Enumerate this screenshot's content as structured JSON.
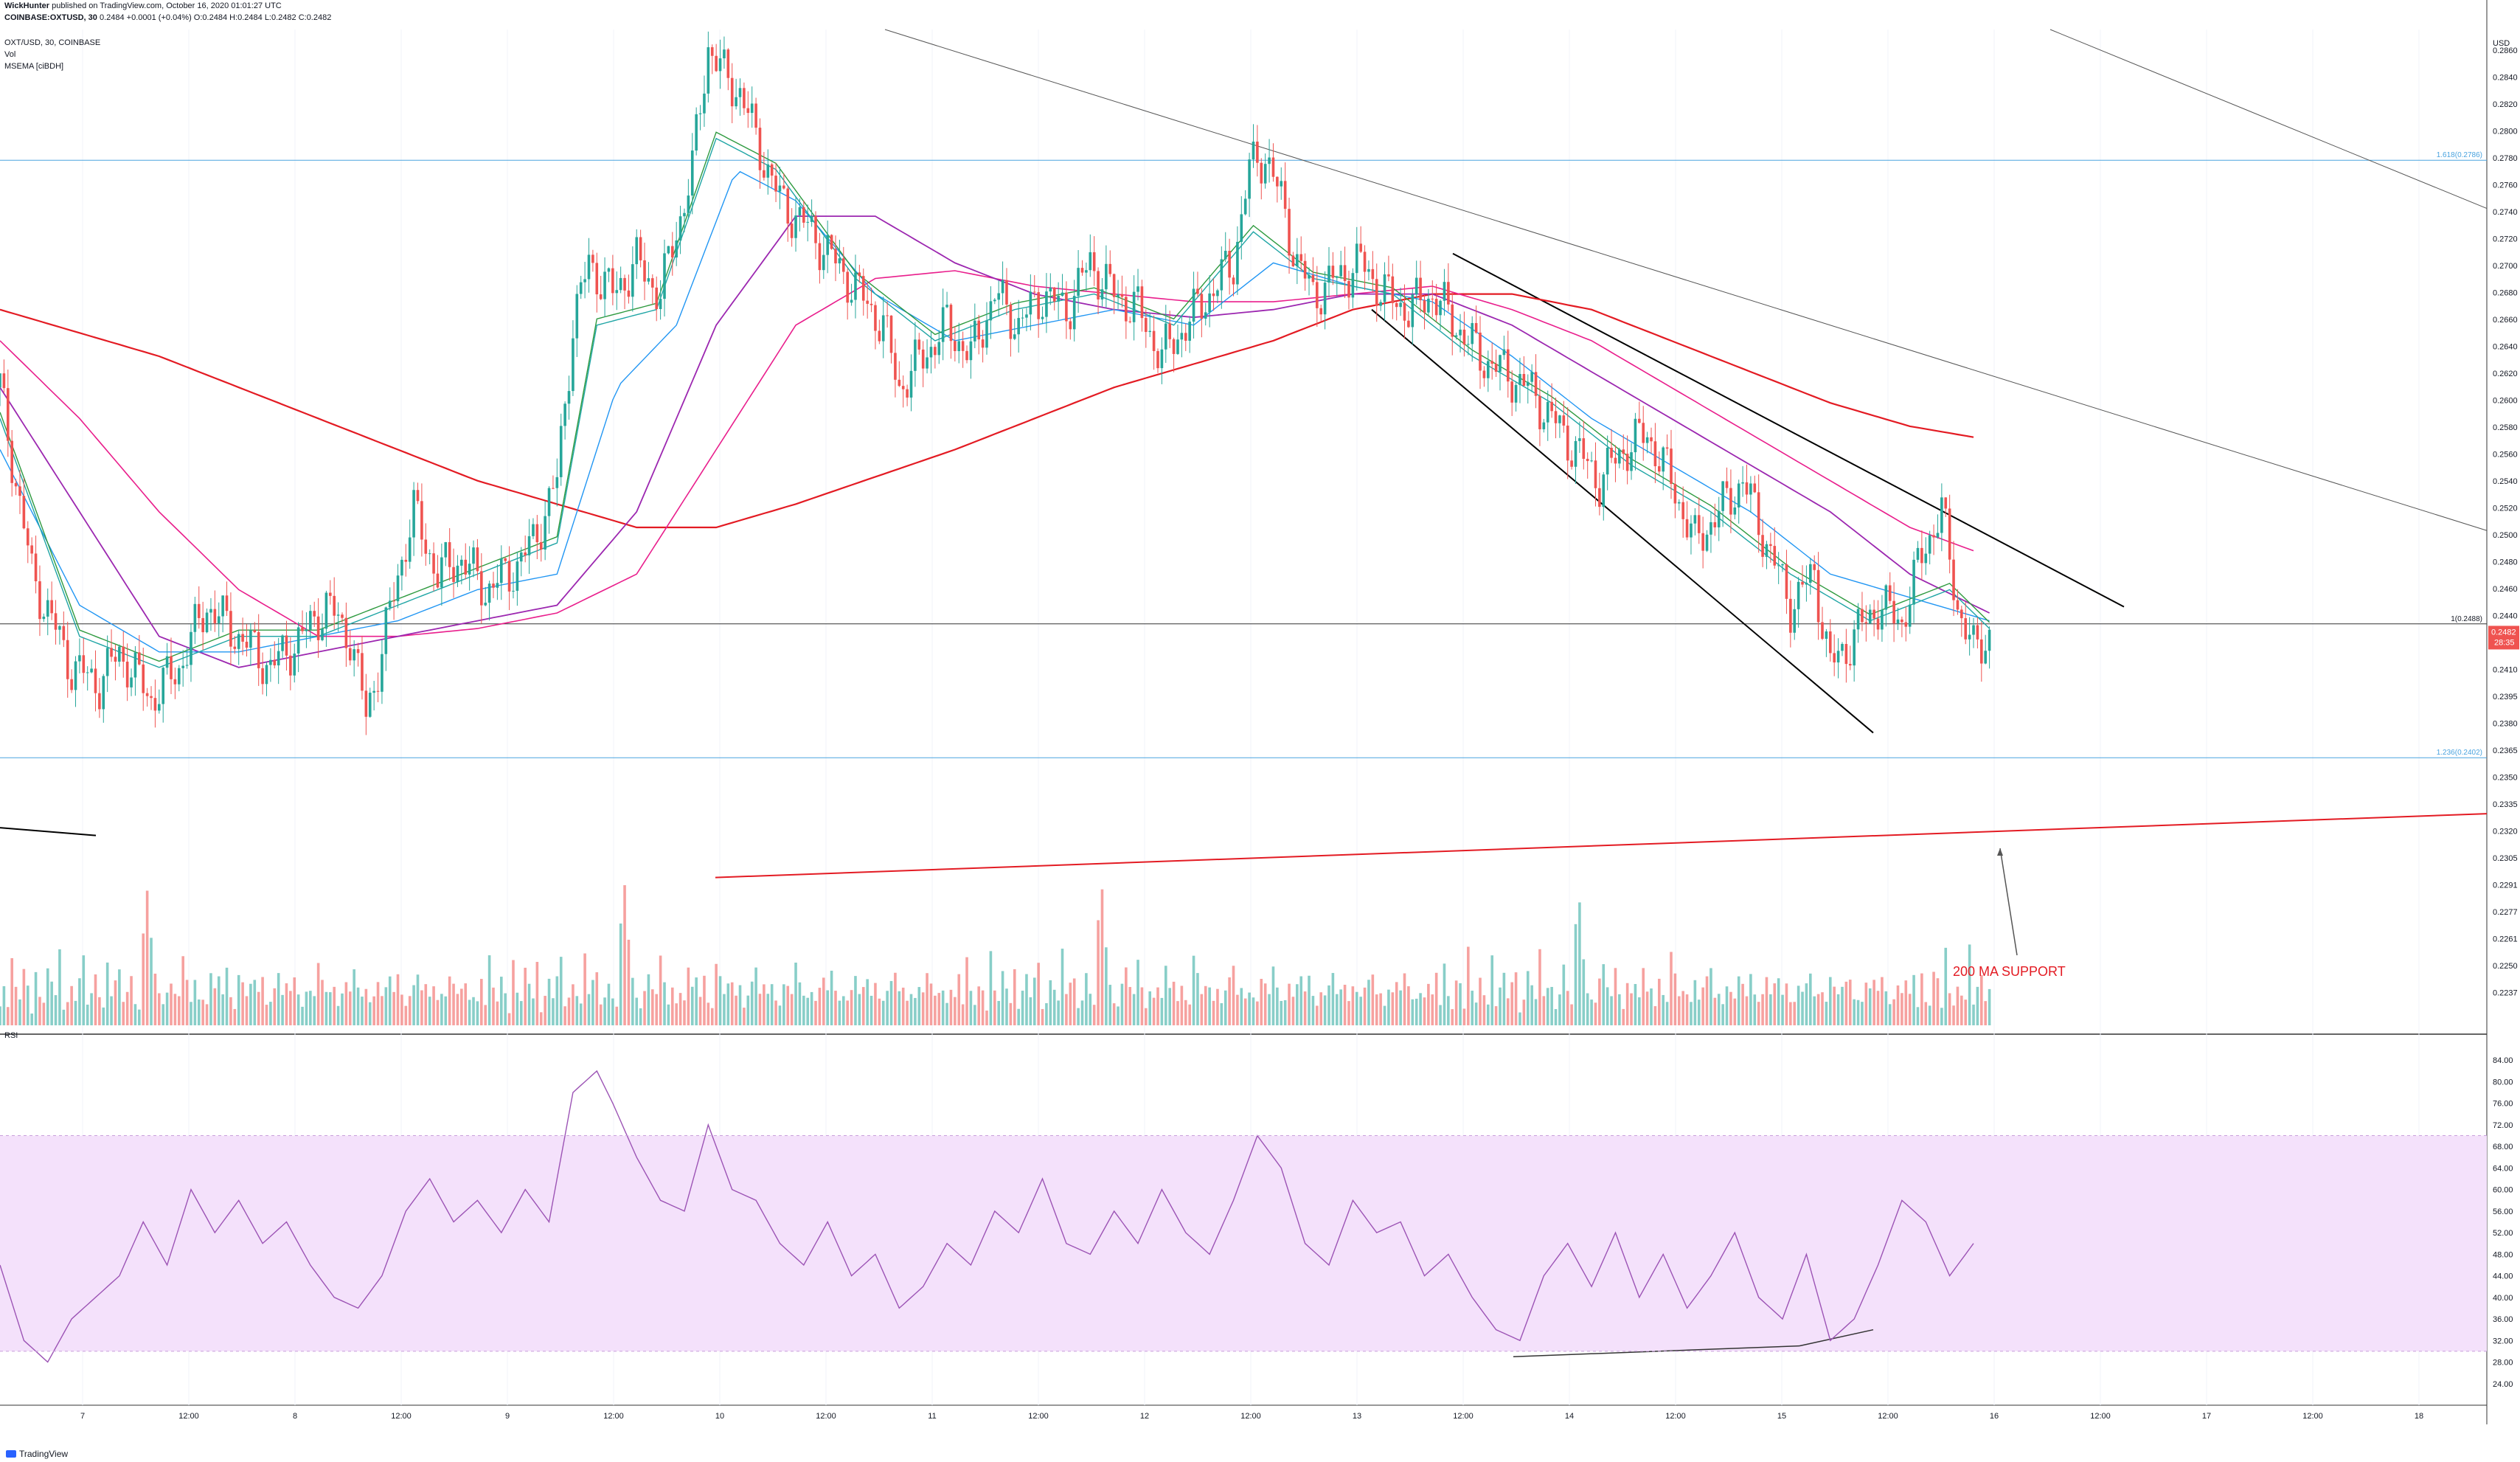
{
  "header": {
    "author": "WickHunter",
    "published": "published on TradingView.com, October 16, 2020 01:01:27 UTC",
    "symbol": "COINBASE:OXTUSD, 30",
    "ohlc": "0.2484 +0.0001 (+0.04%) O:0.2484 H:0.2484 L:0.2482 C:0.2482",
    "pane_title": "OXT/USD, 30, COINBASE",
    "vol_label": "Vol",
    "msema_label": "MSEMA [ciBDH]"
  },
  "brand": {
    "name": "TradingView"
  },
  "colors": {
    "up": "#26a69a",
    "down": "#ef5350",
    "ema_green": "#2e9a3f",
    "ema_teal": "#1fa5a5",
    "ema_blue": "#2196f3",
    "ema_purple": "#9c27b0",
    "ema_magenta": "#e91e8c",
    "ma200": "#e31b23",
    "rsi": "#9c54b5",
    "rsi_band": "#f4e1fb",
    "fib": "#4aa3df"
  },
  "chart_data": [
    {
      "type": "candlestick",
      "title": "OXT/USD, 30, COINBASE",
      "currency": "USD",
      "x_ticks": [
        "7",
        "12:00",
        "8",
        "12:00",
        "9",
        "12:00",
        "10",
        "12:00",
        "11",
        "12:00",
        "12",
        "12:00",
        "13",
        "12:00",
        "14",
        "12:00",
        "15",
        "12:00",
        "16",
        "12:00",
        "17",
        "12:00",
        "18"
      ],
      "y_ticks": [
        "0.2860",
        "0.2840",
        "0.2820",
        "0.2800",
        "0.2780",
        "0.2760",
        "0.2740",
        "0.2720",
        "0.2700",
        "0.2680",
        "0.2660",
        "0.2640",
        "0.2620",
        "0.2600",
        "0.2580",
        "0.2560",
        "0.2540",
        "0.2520",
        "0.2500",
        "0.2480",
        "0.2460",
        "0.2440",
        "0.2425",
        "0.2410",
        "0.2395",
        "0.2380",
        "0.2365",
        "0.2350",
        "0.2335",
        "0.2320",
        "0.2305",
        "0.2291",
        "0.2277",
        "0.2261",
        "0.2250",
        "0.2237"
      ],
      "last_price": "0.2482",
      "countdown": "28:35",
      "fib_levels": [
        {
          "label": "1.618(0.2786)",
          "value": 0.2786
        },
        {
          "label": "1(0.2488)",
          "value": 0.2488
        },
        {
          "label": "1.236(0.2402)",
          "value": 0.2402
        }
      ],
      "annotation": "200 MA SUPPORT",
      "price_path": [
        [
          0,
          0.264
        ],
        [
          8,
          0.252
        ],
        [
          18,
          0.246
        ],
        [
          25,
          0.245
        ],
        [
          30,
          0.247
        ],
        [
          38,
          0.244
        ],
        [
          45,
          0.246
        ],
        [
          52,
          0.25
        ],
        [
          60,
          0.248
        ],
        [
          68,
          0.246
        ],
        [
          76,
          0.248
        ],
        [
          82,
          0.25
        ],
        [
          88,
          0.248
        ],
        [
          92,
          0.243
        ],
        [
          96,
          0.247
        ],
        [
          100,
          0.252
        ],
        [
          104,
          0.256
        ],
        [
          110,
          0.252
        ],
        [
          116,
          0.253
        ],
        [
          122,
          0.251
        ],
        [
          128,
          0.252
        ],
        [
          134,
          0.254
        ],
        [
          140,
          0.258
        ],
        [
          144,
          0.268
        ],
        [
          148,
          0.272
        ],
        [
          154,
          0.27
        ],
        [
          160,
          0.272
        ],
        [
          166,
          0.27
        ],
        [
          170,
          0.274
        ],
        [
          174,
          0.278
        ],
        [
          178,
          0.286
        ],
        [
          182,
          0.284
        ],
        [
          186,
          0.283
        ],
        [
          190,
          0.28
        ],
        [
          196,
          0.276
        ],
        [
          204,
          0.274
        ],
        [
          210,
          0.272
        ],
        [
          216,
          0.27
        ],
        [
          222,
          0.268
        ],
        [
          226,
          0.264
        ],
        [
          232,
          0.266
        ],
        [
          238,
          0.268
        ],
        [
          244,
          0.266
        ],
        [
          250,
          0.27
        ],
        [
          256,
          0.268
        ],
        [
          262,
          0.27
        ],
        [
          268,
          0.269
        ],
        [
          274,
          0.272
        ],
        [
          280,
          0.27
        ],
        [
          286,
          0.269
        ],
        [
          292,
          0.266
        ],
        [
          298,
          0.268
        ],
        [
          304,
          0.27
        ],
        [
          310,
          0.272
        ],
        [
          314,
          0.278
        ],
        [
          318,
          0.279
        ],
        [
          322,
          0.276
        ],
        [
          326,
          0.272
        ],
        [
          330,
          0.27
        ],
        [
          336,
          0.271
        ],
        [
          342,
          0.272
        ],
        [
          348,
          0.27
        ],
        [
          354,
          0.269
        ],
        [
          360,
          0.27
        ],
        [
          366,
          0.268
        ],
        [
          372,
          0.266
        ],
        [
          378,
          0.265
        ],
        [
          384,
          0.264
        ],
        [
          390,
          0.262
        ],
        [
          396,
          0.26
        ],
        [
          402,
          0.258
        ],
        [
          408,
          0.26
        ],
        [
          414,
          0.261
        ],
        [
          420,
          0.258
        ],
        [
          426,
          0.254
        ],
        [
          432,
          0.256
        ],
        [
          438,
          0.258
        ],
        [
          444,
          0.254
        ],
        [
          450,
          0.25
        ],
        [
          456,
          0.252
        ],
        [
          460,
          0.246
        ],
        [
          466,
          0.248
        ],
        [
          472,
          0.25
        ],
        [
          478,
          0.249
        ],
        [
          484,
          0.254
        ],
        [
          488,
          0.256
        ],
        [
          492,
          0.25
        ],
        [
          496,
          0.247
        ],
        [
          500,
          0.2482
        ]
      ],
      "ema_fast": [
        [
          0,
          0.262
        ],
        [
          20,
          0.248
        ],
        [
          40,
          0.246
        ],
        [
          60,
          0.248
        ],
        [
          80,
          0.248
        ],
        [
          100,
          0.25
        ],
        [
          120,
          0.252
        ],
        [
          140,
          0.254
        ],
        [
          150,
          0.268
        ],
        [
          165,
          0.269
        ],
        [
          180,
          0.28
        ],
        [
          195,
          0.278
        ],
        [
          215,
          0.271
        ],
        [
          235,
          0.267
        ],
        [
          255,
          0.269
        ],
        [
          275,
          0.27
        ],
        [
          295,
          0.268
        ],
        [
          315,
          0.274
        ],
        [
          330,
          0.271
        ],
        [
          350,
          0.27
        ],
        [
          370,
          0.266
        ],
        [
          390,
          0.263
        ],
        [
          410,
          0.259
        ],
        [
          430,
          0.256
        ],
        [
          450,
          0.252
        ],
        [
          470,
          0.249
        ],
        [
          490,
          0.251
        ],
        [
          500,
          0.2485
        ]
      ],
      "ema_mid": [
        [
          0,
          0.26
        ],
        [
          20,
          0.25
        ],
        [
          40,
          0.247
        ],
        [
          60,
          0.247
        ],
        [
          80,
          0.248
        ],
        [
          100,
          0.249
        ],
        [
          120,
          0.251
        ],
        [
          140,
          0.252
        ],
        [
          155,
          0.264
        ],
        [
          170,
          0.268
        ],
        [
          185,
          0.278
        ],
        [
          200,
          0.276
        ],
        [
          220,
          0.27
        ],
        [
          240,
          0.267
        ],
        [
          260,
          0.268
        ],
        [
          280,
          0.269
        ],
        [
          300,
          0.268
        ],
        [
          320,
          0.272
        ],
        [
          340,
          0.2705
        ],
        [
          360,
          0.2695
        ],
        [
          380,
          0.266
        ],
        [
          400,
          0.262
        ],
        [
          420,
          0.259
        ],
        [
          440,
          0.256
        ],
        [
          460,
          0.252
        ],
        [
          480,
          0.2505
        ],
        [
          500,
          0.249
        ]
      ],
      "ema_purple": [
        [
          0,
          0.264
        ],
        [
          20,
          0.256
        ],
        [
          40,
          0.248
        ],
        [
          60,
          0.246
        ],
        [
          80,
          0.247
        ],
        [
          100,
          0.248
        ],
        [
          120,
          0.249
        ],
        [
          140,
          0.25
        ],
        [
          160,
          0.256
        ],
        [
          180,
          0.268
        ],
        [
          200,
          0.275
        ],
        [
          220,
          0.275
        ],
        [
          240,
          0.272
        ],
        [
          260,
          0.27
        ],
        [
          280,
          0.269
        ],
        [
          300,
          0.2685
        ],
        [
          320,
          0.269
        ],
        [
          340,
          0.27
        ],
        [
          360,
          0.27
        ],
        [
          380,
          0.268
        ],
        [
          400,
          0.265
        ],
        [
          420,
          0.262
        ],
        [
          440,
          0.259
        ],
        [
          460,
          0.256
        ],
        [
          480,
          0.252
        ],
        [
          500,
          0.2495
        ]
      ],
      "ema_magenta": [
        [
          0,
          0.267
        ],
        [
          20,
          0.262
        ],
        [
          40,
          0.256
        ],
        [
          60,
          0.251
        ],
        [
          80,
          0.248
        ],
        [
          100,
          0.248
        ],
        [
          120,
          0.2485
        ],
        [
          140,
          0.2495
        ],
        [
          160,
          0.252
        ],
        [
          180,
          0.26
        ],
        [
          200,
          0.268
        ],
        [
          220,
          0.271
        ],
        [
          240,
          0.2715
        ],
        [
          260,
          0.2705
        ],
        [
          280,
          0.27
        ],
        [
          300,
          0.2695
        ],
        [
          320,
          0.2695
        ],
        [
          340,
          0.27
        ],
        [
          360,
          0.2705
        ],
        [
          380,
          0.269
        ],
        [
          400,
          0.267
        ],
        [
          420,
          0.264
        ],
        [
          440,
          0.261
        ],
        [
          460,
          0.258
        ],
        [
          480,
          0.255
        ],
        [
          496,
          0.2535
        ]
      ],
      "ma200": [
        [
          0,
          0.269
        ],
        [
          40,
          0.266
        ],
        [
          80,
          0.262
        ],
        [
          120,
          0.258
        ],
        [
          160,
          0.255
        ],
        [
          180,
          0.255
        ],
        [
          200,
          0.2565
        ],
        [
          240,
          0.26
        ],
        [
          280,
          0.264
        ],
        [
          320,
          0.267
        ],
        [
          340,
          0.269
        ],
        [
          360,
          0.27
        ],
        [
          380,
          0.27
        ],
        [
          400,
          0.269
        ],
        [
          420,
          0.267
        ],
        [
          440,
          0.265
        ],
        [
          460,
          0.263
        ],
        [
          480,
          0.2615
        ],
        [
          496,
          0.2608
        ]
      ],
      "volume": [
        18,
        30,
        12,
        40,
        22,
        15,
        35,
        28,
        10,
        45,
        20,
        14,
        33,
        25,
        18,
        50,
        12,
        22,
        30,
        16,
        28,
        40,
        12,
        20,
        36,
        24,
        15,
        44,
        18,
        26,
        32,
        14,
        22,
        38,
        20,
        12,
        60,
        80,
        50,
        30,
        20,
        15,
        28,
        35,
        22,
        18,
        40,
        26,
        14,
        30,
        20,
        24,
        16,
        34,
        22,
        28,
        18,
        36,
        20,
        14,
        42,
        30,
        18,
        24,
        26,
        20,
        32,
        16,
        22,
        28,
        34,
        18,
        24,
        20,
        30,
        22,
        16,
        28,
        24,
        18,
        36,
        26,
        20,
        22,
        30,
        18,
        24,
        28,
        20,
        32,
        22,
        18,
        26,
        20,
        24,
        30,
        18,
        22,
        28,
        20,
        34,
        24,
        18,
        22,
        26,
        30,
        20,
        24,
        18,
        28,
        22,
        26,
        20,
        30,
        24,
        18,
        22,
        28,
        20,
        26
      ]
    },
    {
      "type": "line",
      "title": "RSI",
      "y_ticks": [
        "84.00",
        "80.00",
        "76.00",
        "72.00",
        "68.00",
        "64.00",
        "60.00",
        "56.00",
        "52.00",
        "48.00",
        "44.00",
        "40.00",
        "36.00",
        "32.00",
        "28.00",
        "24.00"
      ],
      "band": [
        30,
        70
      ],
      "values": [
        [
          0,
          46
        ],
        [
          6,
          32
        ],
        [
          12,
          28
        ],
        [
          18,
          36
        ],
        [
          24,
          40
        ],
        [
          30,
          44
        ],
        [
          36,
          54
        ],
        [
          42,
          46
        ],
        [
          48,
          60
        ],
        [
          54,
          52
        ],
        [
          60,
          58
        ],
        [
          66,
          50
        ],
        [
          72,
          54
        ],
        [
          78,
          46
        ],
        [
          84,
          40
        ],
        [
          90,
          38
        ],
        [
          96,
          44
        ],
        [
          102,
          56
        ],
        [
          108,
          62
        ],
        [
          114,
          54
        ],
        [
          120,
          58
        ],
        [
          126,
          52
        ],
        [
          132,
          60
        ],
        [
          138,
          54
        ],
        [
          144,
          78
        ],
        [
          150,
          82
        ],
        [
          154,
          76
        ],
        [
          160,
          66
        ],
        [
          166,
          58
        ],
        [
          172,
          56
        ],
        [
          178,
          72
        ],
        [
          184,
          60
        ],
        [
          190,
          58
        ],
        [
          196,
          50
        ],
        [
          202,
          46
        ],
        [
          208,
          54
        ],
        [
          214,
          44
        ],
        [
          220,
          48
        ],
        [
          226,
          38
        ],
        [
          232,
          42
        ],
        [
          238,
          50
        ],
        [
          244,
          46
        ],
        [
          250,
          56
        ],
        [
          256,
          52
        ],
        [
          262,
          62
        ],
        [
          268,
          50
        ],
        [
          274,
          48
        ],
        [
          280,
          56
        ],
        [
          286,
          50
        ],
        [
          292,
          60
        ],
        [
          298,
          52
        ],
        [
          304,
          48
        ],
        [
          310,
          58
        ],
        [
          316,
          70
        ],
        [
          322,
          64
        ],
        [
          328,
          50
        ],
        [
          334,
          46
        ],
        [
          340,
          58
        ],
        [
          346,
          52
        ],
        [
          352,
          54
        ],
        [
          358,
          44
        ],
        [
          364,
          48
        ],
        [
          370,
          40
        ],
        [
          376,
          34
        ],
        [
          382,
          32
        ],
        [
          388,
          44
        ],
        [
          394,
          50
        ],
        [
          400,
          42
        ],
        [
          406,
          52
        ],
        [
          412,
          40
        ],
        [
          418,
          48
        ],
        [
          424,
          38
        ],
        [
          430,
          44
        ],
        [
          436,
          52
        ],
        [
          442,
          40
        ],
        [
          448,
          36
        ],
        [
          454,
          48
        ],
        [
          460,
          32
        ],
        [
          466,
          36
        ],
        [
          472,
          46
        ],
        [
          478,
          58
        ],
        [
          484,
          54
        ],
        [
          490,
          44
        ],
        [
          496,
          50
        ]
      ]
    }
  ]
}
